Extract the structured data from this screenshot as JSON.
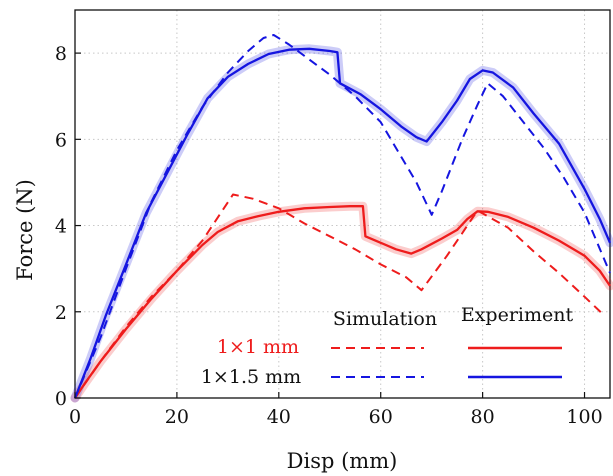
{
  "chart_data": {
    "type": "line",
    "xlabel": "Disp (mm)",
    "ylabel": "Force (N)",
    "xlim": [
      0,
      105
    ],
    "ylim": [
      0,
      9
    ],
    "xticks": [
      "0",
      "20",
      "40",
      "60",
      "80",
      "100"
    ],
    "yticks": [
      "0",
      "2",
      "4",
      "6",
      "8"
    ],
    "grid": "dotted",
    "legend": {
      "placement": "bottom-right",
      "column_headers": [
        "Simulation",
        "Experiment"
      ],
      "rows": [
        {
          "label": "1×1 mm",
          "color": "#ee1c1c"
        },
        {
          "label": "1×1.5 mm",
          "color": "#1515e0"
        }
      ]
    },
    "series": [
      {
        "kind": "Experiment",
        "size": "1×1 mm",
        "color": "#ee1c1c",
        "points": [
          [
            0,
            0
          ],
          [
            2,
            0.35
          ],
          [
            5,
            0.85
          ],
          [
            10,
            1.6
          ],
          [
            15,
            2.3
          ],
          [
            20,
            2.95
          ],
          [
            25,
            3.55
          ],
          [
            28,
            3.85
          ],
          [
            32,
            4.1
          ],
          [
            36,
            4.22
          ],
          [
            40,
            4.32
          ],
          [
            45,
            4.4
          ],
          [
            50,
            4.43
          ],
          [
            54,
            4.45
          ],
          [
            56.5,
            4.45
          ],
          [
            57,
            3.75
          ],
          [
            60,
            3.6
          ],
          [
            63,
            3.45
          ],
          [
            66,
            3.35
          ],
          [
            68,
            3.45
          ],
          [
            72,
            3.7
          ],
          [
            75,
            3.9
          ],
          [
            77,
            4.15
          ],
          [
            79,
            4.33
          ],
          [
            81,
            4.32
          ],
          [
            85,
            4.2
          ],
          [
            90,
            3.95
          ],
          [
            95,
            3.65
          ],
          [
            100,
            3.3
          ],
          [
            103,
            2.95
          ],
          [
            105,
            2.6
          ]
        ]
      },
      {
        "kind": "Simulation",
        "size": "1×1 mm",
        "color": "#ee1c1c",
        "points": [
          [
            0,
            0
          ],
          [
            5,
            0.85
          ],
          [
            10,
            1.65
          ],
          [
            15,
            2.35
          ],
          [
            20,
            2.95
          ],
          [
            25,
            3.65
          ],
          [
            31,
            4.72
          ],
          [
            35,
            4.62
          ],
          [
            40,
            4.4
          ],
          [
            45,
            4.05
          ],
          [
            50,
            3.75
          ],
          [
            55,
            3.45
          ],
          [
            60,
            3.1
          ],
          [
            65,
            2.8
          ],
          [
            68,
            2.5
          ],
          [
            73,
            3.3
          ],
          [
            79,
            4.35
          ],
          [
            85,
            3.95
          ],
          [
            90,
            3.4
          ],
          [
            95,
            2.9
          ],
          [
            100,
            2.35
          ],
          [
            104,
            1.9
          ]
        ]
      },
      {
        "kind": "Experiment",
        "size": "1×1.5 mm",
        "color": "#1515e0",
        "points": [
          [
            0,
            0
          ],
          [
            3,
            0.9
          ],
          [
            6,
            1.9
          ],
          [
            10,
            3.1
          ],
          [
            14,
            4.3
          ],
          [
            18,
            5.2
          ],
          [
            22,
            6.1
          ],
          [
            26,
            6.95
          ],
          [
            30,
            7.45
          ],
          [
            34,
            7.75
          ],
          [
            38,
            7.98
          ],
          [
            42,
            8.08
          ],
          [
            46,
            8.1
          ],
          [
            50,
            8.05
          ],
          [
            51.5,
            8.02
          ],
          [
            52,
            7.3
          ],
          [
            56,
            7.05
          ],
          [
            60,
            6.7
          ],
          [
            64,
            6.3
          ],
          [
            67,
            6.05
          ],
          [
            69,
            5.95
          ],
          [
            72,
            6.4
          ],
          [
            75,
            6.9
          ],
          [
            77.5,
            7.4
          ],
          [
            80,
            7.6
          ],
          [
            82,
            7.55
          ],
          [
            86,
            7.2
          ],
          [
            90,
            6.6
          ],
          [
            95,
            5.9
          ],
          [
            100,
            4.85
          ],
          [
            103,
            4.15
          ],
          [
            105,
            3.6
          ]
        ]
      },
      {
        "kind": "Simulation",
        "size": "1×1.5 mm",
        "color": "#1515e0",
        "points": [
          [
            0,
            0
          ],
          [
            5,
            1.4
          ],
          [
            10,
            3.0
          ],
          [
            15,
            4.55
          ],
          [
            20,
            5.75
          ],
          [
            25,
            6.75
          ],
          [
            30,
            7.55
          ],
          [
            34,
            8.05
          ],
          [
            37,
            8.35
          ],
          [
            39,
            8.42
          ],
          [
            42,
            8.2
          ],
          [
            46,
            7.85
          ],
          [
            50,
            7.5
          ],
          [
            55,
            7.0
          ],
          [
            60,
            6.4
          ],
          [
            64,
            5.6
          ],
          [
            67,
            5.0
          ],
          [
            70,
            4.25
          ],
          [
            72,
            4.8
          ],
          [
            76,
            6.0
          ],
          [
            79,
            6.8
          ],
          [
            81,
            7.3
          ],
          [
            84,
            7.0
          ],
          [
            88,
            6.4
          ],
          [
            92,
            5.8
          ],
          [
            96,
            5.1
          ],
          [
            100,
            4.3
          ],
          [
            105,
            2.9
          ]
        ]
      }
    ]
  }
}
